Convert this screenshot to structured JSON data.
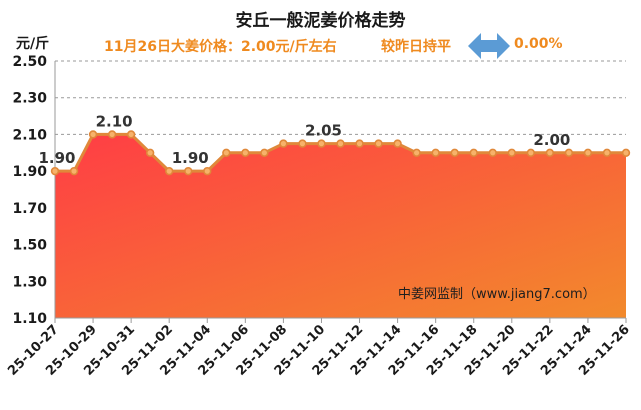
{
  "header": {
    "title": "安丘一般泥姜价格走势",
    "unit": "元/斤",
    "price_text": "11月26日大姜价格：2.00元/斤左右",
    "change_text": "较昨日持平",
    "change_pct": "0.00%",
    "change_icon": "left-right-arrow-icon"
  },
  "watermark": "中姜网监制（www.jiang7.com）",
  "colors": {
    "accent": "#ef8a1f",
    "line": "#e0883a",
    "fill_top": "#ff3d45",
    "fill_bottom": "#f28a2c",
    "arrow": "#5b9bd5"
  },
  "chart_data": {
    "type": "area",
    "title": "安丘一般泥姜价格走势",
    "ylabel": "元/斤",
    "ylim": [
      1.1,
      2.5
    ],
    "yticks": [
      "1.10",
      "1.30",
      "1.50",
      "1.70",
      "1.90",
      "2.10",
      "2.30",
      "2.50"
    ],
    "grid": true,
    "x": [
      "25-10-27",
      "25-10-28",
      "25-10-29",
      "25-10-30",
      "25-10-31",
      "25-11-01",
      "25-11-02",
      "25-11-03",
      "25-11-04",
      "25-11-05",
      "25-11-06",
      "25-11-07",
      "25-11-08",
      "25-11-09",
      "25-11-10",
      "25-11-11",
      "25-11-12",
      "25-11-13",
      "25-11-14",
      "25-11-15",
      "25-11-16",
      "25-11-17",
      "25-11-18",
      "25-11-19",
      "25-11-20",
      "25-11-21",
      "25-11-22",
      "25-11-23",
      "25-11-24",
      "25-11-25",
      "25-11-26"
    ],
    "xticks": [
      "25-10-27",
      "25-10-29",
      "25-10-31",
      "25-11-02",
      "25-11-04",
      "25-11-06",
      "25-11-08",
      "25-11-10",
      "25-11-12",
      "25-11-14",
      "25-11-16",
      "25-11-18",
      "25-11-20",
      "25-11-22",
      "25-11-24",
      "25-11-26"
    ],
    "values": [
      1.9,
      1.9,
      2.1,
      2.1,
      2.1,
      2.0,
      1.9,
      1.9,
      1.9,
      2.0,
      2.0,
      2.0,
      2.05,
      2.05,
      2.05,
      2.05,
      2.05,
      2.05,
      2.05,
      2.0,
      2.0,
      2.0,
      2.0,
      2.0,
      2.0,
      2.0,
      2.0,
      2.0,
      2.0,
      2.0,
      2.0
    ],
    "annotations": [
      {
        "index": 0,
        "label": "1.90"
      },
      {
        "index": 3,
        "label": "2.10"
      },
      {
        "index": 7,
        "label": "1.90"
      },
      {
        "index": 14,
        "label": "2.05"
      },
      {
        "index": 26,
        "label": "2.00"
      }
    ]
  }
}
